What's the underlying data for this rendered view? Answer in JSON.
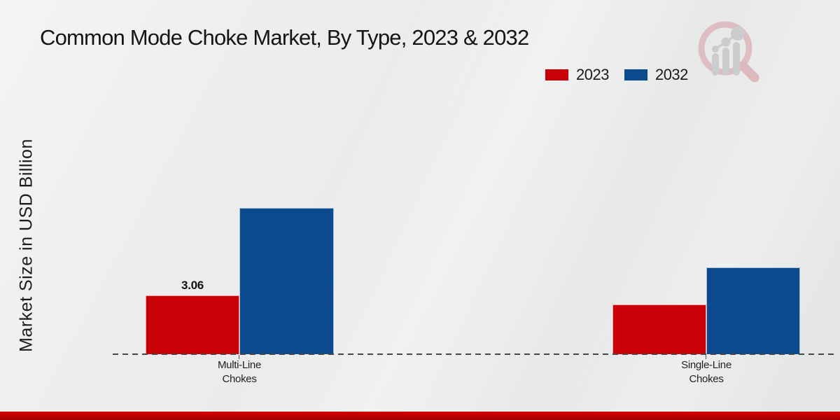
{
  "page": {
    "title": "Common Mode Choke Market, By Type, 2023 & 2032"
  },
  "legend": {
    "items": [
      {
        "label": "2023",
        "color": "#c90007"
      },
      {
        "label": "2032",
        "color": "#0b4a8d"
      }
    ]
  },
  "chart_data": {
    "type": "bar",
    "title": "Common Mode Choke Market, By Type, 2023 & 2032",
    "xlabel": "",
    "ylabel": "Market Size in USD Billion",
    "categories": [
      "Multi-Line Chokes",
      "Single-Line Chokes"
    ],
    "series": [
      {
        "name": "2023",
        "color": "#c90007",
        "values": [
          3.06,
          2.6
        ],
        "value_labels": [
          "3.06",
          ""
        ]
      },
      {
        "name": "2032",
        "color": "#0b4a8d",
        "values": [
          7.6,
          4.5
        ],
        "value_labels": [
          "",
          ""
        ]
      }
    ],
    "ylim": [
      0,
      8
    ],
    "grid": false,
    "legend_position": "top-right",
    "baseline_style": "dashed",
    "value_label_note": "only the 2023 Multi-Line bar shows a printed value"
  },
  "branding": {
    "logo": "market-research-magnifier-chart-logo",
    "footer_bar_color": "#c00000"
  }
}
